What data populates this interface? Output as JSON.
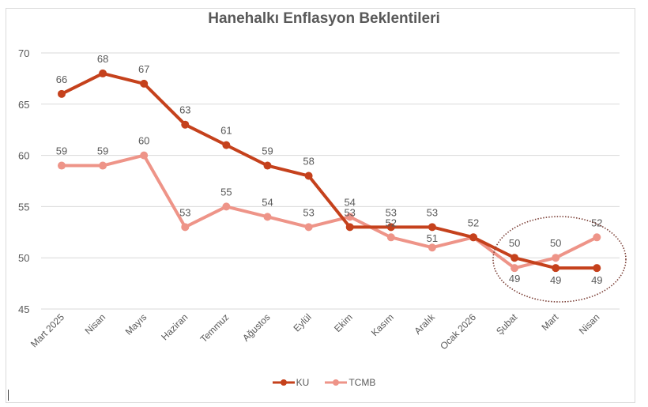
{
  "chart_data": {
    "type": "line",
    "title": "Hanehalkı Enflasyon Beklentileri",
    "xlabel": "",
    "ylabel": "",
    "ylim": [
      45,
      70
    ],
    "yticks": [
      45,
      50,
      55,
      60,
      65,
      70
    ],
    "grid": true,
    "legend_position": "bottom",
    "categories": [
      "Mart 2025",
      "Nisan",
      "Mayıs",
      "Haziran",
      "Temmuz",
      "Ağustos",
      "Eylül",
      "Ekim",
      "Kasım",
      "Aralık",
      "Ocak 2026",
      "Şubat",
      "Mart",
      "Nisan"
    ],
    "series": [
      {
        "name": "KU",
        "color": "#C5411C",
        "values": [
          66,
          68,
          67,
          63,
          61,
          59,
          58,
          53,
          53,
          53,
          52,
          50,
          49,
          49
        ]
      },
      {
        "name": "TCMB",
        "color": "#EE9488",
        "values": [
          59,
          59,
          60,
          53,
          55,
          54,
          53,
          54,
          52,
          51,
          52,
          49,
          50,
          52
        ]
      }
    ],
    "annotations": [
      {
        "type": "dotted-ellipse",
        "color": "#7B3F36",
        "covers_categories": [
          "Şubat",
          "Mart",
          "Nisan"
        ]
      }
    ]
  },
  "colors": {
    "gridline": "#d9d9d9",
    "axis_text": "#595959",
    "title_text": "#595959"
  }
}
